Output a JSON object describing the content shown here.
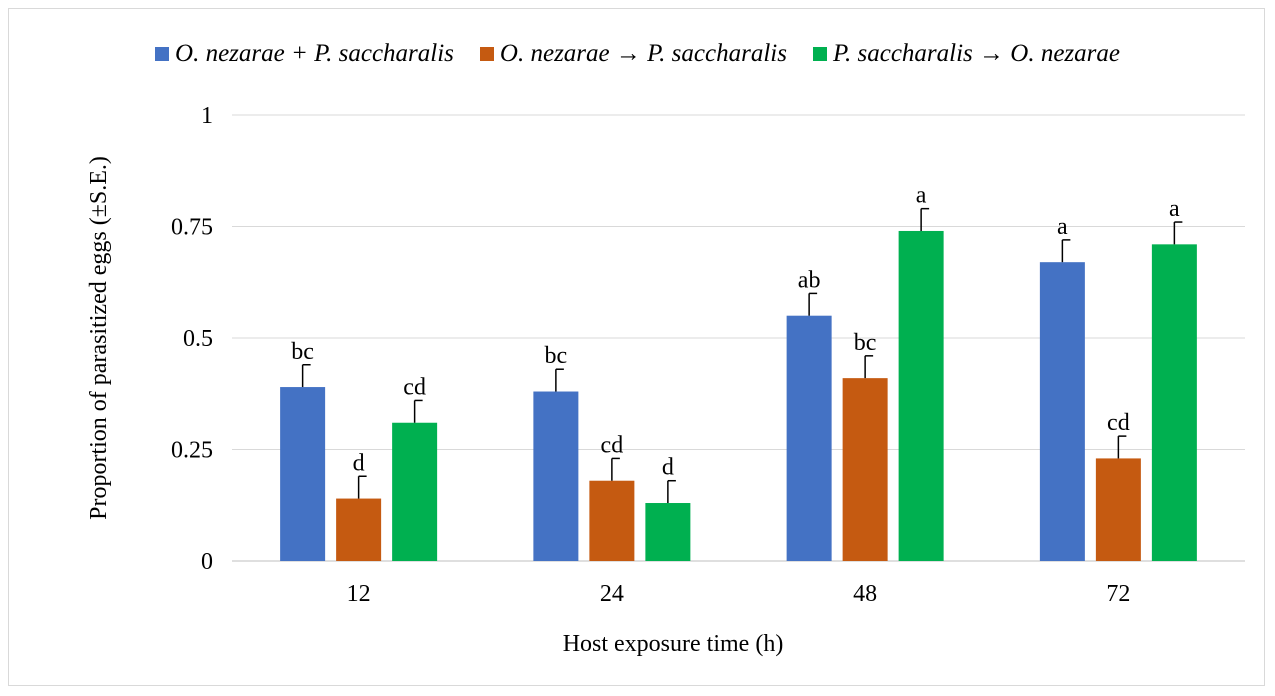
{
  "chart_data": {
    "type": "bar",
    "title": "",
    "xlabel": "Host exposure time (h)",
    "ylabel": "Proportion of parasitized eggs (±S.E.)",
    "ylim": [
      0,
      1
    ],
    "yticks": [
      "0",
      "0.25",
      "0.5",
      "0.75",
      "1"
    ],
    "grid": true,
    "legend_position": "top",
    "categories": [
      "12",
      "24",
      "48",
      "72"
    ],
    "series": [
      {
        "name": "O. nezarae + P. saccharalis",
        "color": "#4472C4",
        "values": [
          0.39,
          0.38,
          0.55,
          0.67
        ],
        "errors": [
          0.05,
          0.05,
          0.05,
          0.05
        ],
        "labels": [
          "bc",
          "bc",
          "ab",
          "a"
        ]
      },
      {
        "name": "O. nezarae → P. saccharalis",
        "color": "#C55A11",
        "values": [
          0.14,
          0.18,
          0.41,
          0.23
        ],
        "errors": [
          0.05,
          0.05,
          0.05,
          0.05
        ],
        "labels": [
          "d",
          "cd",
          "bc",
          "cd"
        ]
      },
      {
        "name": "P. saccharalis  → O. nezarae",
        "color": "#00B050",
        "values": [
          0.31,
          0.13,
          0.74,
          0.71
        ],
        "errors": [
          0.05,
          0.05,
          0.05,
          0.05
        ],
        "labels": [
          "cd",
          "d",
          "a",
          "a"
        ]
      }
    ]
  }
}
